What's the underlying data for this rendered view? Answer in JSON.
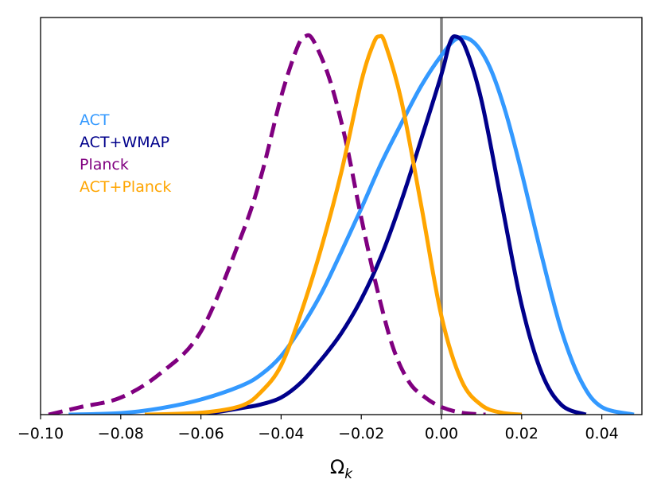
{
  "chart_data": {
    "type": "line",
    "title": "",
    "xlabel": "Ω",
    "xlabel_subscript": "k",
    "ylabel": "",
    "xlim": [
      -0.1,
      0.05
    ],
    "ylim": [
      0,
      1.05
    ],
    "xticks": [
      -0.1,
      -0.08,
      -0.06,
      -0.04,
      -0.02,
      0.0,
      0.02,
      0.04
    ],
    "xtick_labels": [
      "−0.10",
      "−0.08",
      "−0.06",
      "−0.04",
      "−0.02",
      "0.00",
      "0.02",
      "0.04"
    ],
    "yticks_shown": false,
    "grid": false,
    "legend_placement": "upper-left",
    "reference_line": {
      "x": 0.0,
      "color": "#808080"
    },
    "series": [
      {
        "name": "ACT",
        "color": "#3399ff",
        "style": "solid",
        "x": [
          -0.093,
          -0.08,
          -0.07,
          -0.06,
          -0.05,
          -0.045,
          -0.04,
          -0.035,
          -0.03,
          -0.025,
          -0.02,
          -0.015,
          -0.01,
          -0.005,
          0.0,
          0.004,
          0.008,
          0.012,
          0.016,
          0.02,
          0.025,
          0.03,
          0.035,
          0.04,
          0.048
        ],
        "y": [
          0.0,
          0.004,
          0.017,
          0.04,
          0.076,
          0.106,
          0.155,
          0.23,
          0.32,
          0.43,
          0.545,
          0.665,
          0.77,
          0.87,
          0.95,
          0.995,
          0.985,
          0.92,
          0.8,
          0.64,
          0.42,
          0.22,
          0.085,
          0.02,
          0.0
        ]
      },
      {
        "name": "ACT+WMAP",
        "color": "#00008b",
        "style": "solid",
        "x": [
          -0.06,
          -0.05,
          -0.045,
          -0.04,
          -0.035,
          -0.03,
          -0.025,
          -0.02,
          -0.015,
          -0.01,
          -0.005,
          0.0,
          0.002,
          0.0035,
          0.006,
          0.01,
          0.015,
          0.02,
          0.025,
          0.03,
          0.036
        ],
        "y": [
          0.0,
          0.017,
          0.027,
          0.045,
          0.085,
          0.145,
          0.215,
          0.305,
          0.42,
          0.565,
          0.73,
          0.9,
          0.98,
          1.0,
          0.97,
          0.83,
          0.56,
          0.29,
          0.11,
          0.025,
          0.0
        ]
      },
      {
        "name": "Planck",
        "color": "#800080",
        "style": "dashed",
        "x": [
          -0.098,
          -0.09,
          -0.08,
          -0.07,
          -0.06,
          -0.05,
          -0.045,
          -0.04,
          -0.036,
          -0.034,
          -0.032,
          -0.028,
          -0.024,
          -0.02,
          -0.016,
          -0.012,
          -0.008,
          -0.004,
          0.0,
          0.005,
          0.011
        ],
        "y": [
          0.0,
          0.02,
          0.045,
          0.11,
          0.22,
          0.47,
          0.63,
          0.84,
          0.97,
          1.0,
          0.99,
          0.89,
          0.73,
          0.52,
          0.33,
          0.175,
          0.085,
          0.045,
          0.02,
          0.005,
          0.0
        ]
      },
      {
        "name": "ACT+Planck",
        "color": "#ffa500",
        "style": "solid",
        "x": [
          -0.074,
          -0.06,
          -0.05,
          -0.045,
          -0.04,
          -0.035,
          -0.03,
          -0.025,
          -0.02,
          -0.017,
          -0.0155,
          -0.014,
          -0.01,
          -0.005,
          0.0,
          0.005,
          0.01,
          0.015,
          0.02
        ],
        "y": [
          0.0,
          0.005,
          0.023,
          0.06,
          0.13,
          0.27,
          0.44,
          0.64,
          0.88,
          0.98,
          1.0,
          0.98,
          0.83,
          0.55,
          0.26,
          0.09,
          0.025,
          0.005,
          0.0
        ]
      }
    ]
  }
}
